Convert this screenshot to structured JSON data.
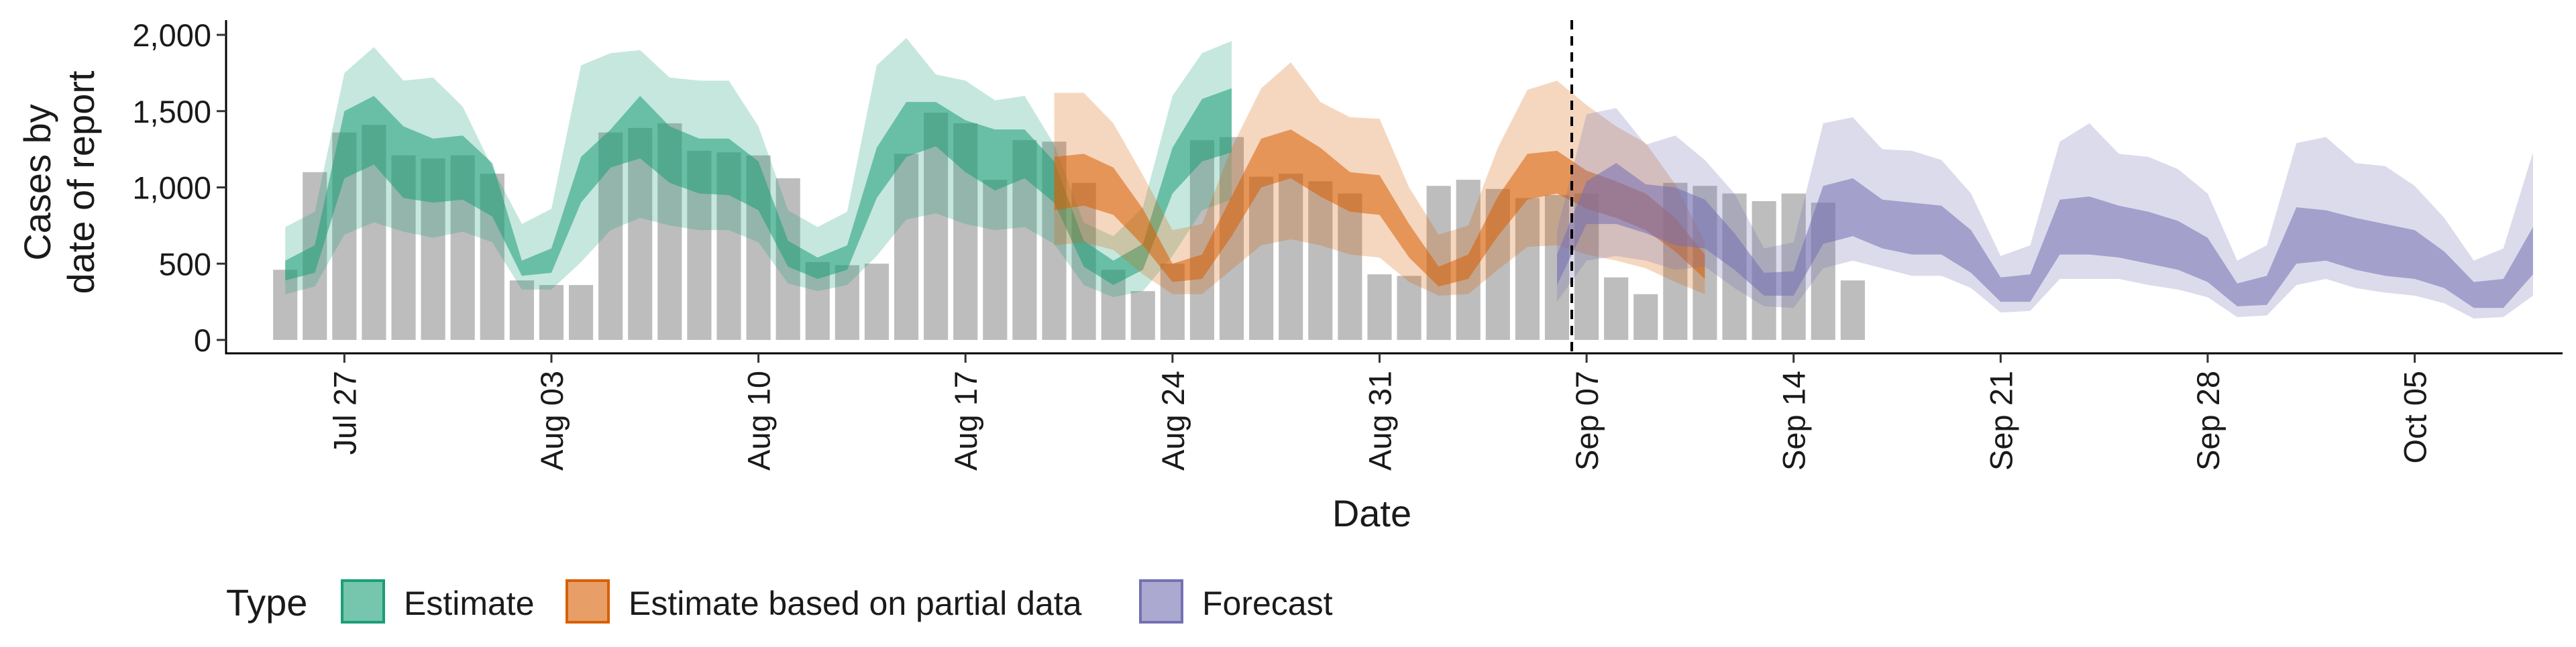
{
  "chart_data": {
    "type": "area",
    "title": "",
    "xlabel": "Date",
    "ylabel_lines": [
      "Cases by",
      "date of report"
    ],
    "ylim": [
      0,
      2000
    ],
    "yticks": [
      0,
      500,
      1000,
      1500,
      2000
    ],
    "ytick_labels": [
      "0",
      "500",
      "1,000",
      "1,500",
      "2,000"
    ],
    "xlim": [
      "2020-07-23",
      "2020-10-10"
    ],
    "xticks": [
      "2020-07-27",
      "2020-08-03",
      "2020-08-10",
      "2020-08-17",
      "2020-08-24",
      "2020-08-31",
      "2020-09-07",
      "2020-09-14",
      "2020-09-21",
      "2020-09-28",
      "2020-10-05"
    ],
    "xtick_labels": [
      "Jul 27",
      "Aug 03",
      "Aug 10",
      "Aug 17",
      "Aug 24",
      "Aug 31",
      "Sep 07",
      "Sep 14",
      "Sep 21",
      "Sep 28",
      "Oct 05"
    ],
    "grid": false,
    "legend": {
      "title": "Type",
      "position": "bottom",
      "entries": [
        {
          "label": "Estimate",
          "color": "#1b9e77"
        },
        {
          "label": "Estimate based on partial data",
          "color": "#d95f02"
        },
        {
          "label": "Forecast",
          "color": "#7570b3"
        }
      ]
    },
    "vline": {
      "date": "2020-09-06",
      "style": "dashed"
    },
    "reported_cases": {
      "start_date": "2020-07-25",
      "values": [
        460,
        1100,
        1360,
        1410,
        1210,
        1190,
        1210,
        1090,
        390,
        360,
        360,
        1360,
        1390,
        1420,
        1240,
        1230,
        1210,
        1060,
        510,
        490,
        500,
        1220,
        1490,
        1420,
        1050,
        1310,
        1300,
        1030,
        460,
        320,
        500,
        1310,
        1330,
        1070,
        1090,
        1040,
        960,
        430,
        420,
        1010,
        1050,
        990,
        930,
        950,
        960,
        410,
        300,
        1030,
        1010,
        960,
        910,
        960,
        900,
        390
      ]
    },
    "series": [
      {
        "name": "Estimate",
        "color": "#1b9e77",
        "start_date": "2020-07-25",
        "median": [
          450,
          560,
          1360,
          1480,
          1280,
          1200,
          1230,
          1090,
          460,
          560,
          940,
          1320,
          1560,
          1330,
          1220,
          1210,
          1050,
          580,
          470,
          590,
          960,
          1440,
          1530,
          1300,
          1220,
          1330,
          1070,
          560,
          400,
          590,
          1000,
          1250,
          1390
        ],
        "lower90": [
          300,
          350,
          690,
          770,
          710,
          670,
          710,
          640,
          330,
          330,
          510,
          720,
          800,
          750,
          720,
          720,
          640,
          370,
          320,
          360,
          550,
          790,
          830,
          760,
          720,
          740,
          630,
          360,
          280,
          320,
          550,
          850,
          920
        ],
        "upper90": [
          740,
          840,
          1750,
          1920,
          1700,
          1720,
          1530,
          1130,
          760,
          860,
          1800,
          1880,
          1900,
          1720,
          1700,
          1700,
          1400,
          850,
          740,
          840,
          1800,
          1980,
          1740,
          1700,
          1570,
          1600,
          1280,
          770,
          680,
          870,
          1600,
          1880,
          1960
        ],
        "lower50": [
          390,
          440,
          1060,
          1150,
          930,
          900,
          920,
          810,
          420,
          440,
          900,
          1130,
          1190,
          1030,
          960,
          950,
          850,
          480,
          400,
          460,
          930,
          1200,
          1270,
          1100,
          980,
          1060,
          900,
          480,
          360,
          460,
          960,
          1170,
          1230
        ],
        "upper50": [
          520,
          620,
          1500,
          1600,
          1400,
          1320,
          1340,
          1160,
          520,
          600,
          1200,
          1380,
          1600,
          1400,
          1320,
          1320,
          1170,
          650,
          540,
          620,
          1260,
          1560,
          1560,
          1440,
          1380,
          1380,
          1170,
          650,
          520,
          630,
          1260,
          1580,
          1650
        ]
      },
      {
        "name": "Estimate based on partial data",
        "color": "#d95f02",
        "start_date": "2020-08-20",
        "median": [
          1000,
          1030,
          950,
          700,
          400,
          490,
          780,
          1180,
          1220,
          1080,
          940,
          920,
          620,
          410,
          480,
          800,
          1050,
          1050,
          940,
          870,
          780,
          620,
          440
        ],
        "lower90": [
          620,
          640,
          590,
          430,
          300,
          300,
          460,
          620,
          660,
          620,
          560,
          540,
          380,
          290,
          300,
          460,
          610,
          620,
          560,
          520,
          470,
          380,
          300
        ],
        "upper90": [
          1620,
          1620,
          1420,
          1080,
          720,
          760,
          1260,
          1650,
          1820,
          1560,
          1460,
          1450,
          1000,
          690,
          750,
          1260,
          1640,
          1700,
          1540,
          1400,
          1290,
          1020,
          640
        ],
        "lower50": [
          850,
          880,
          820,
          620,
          380,
          400,
          680,
          1000,
          1060,
          940,
          840,
          820,
          540,
          350,
          400,
          680,
          920,
          960,
          860,
          800,
          720,
          580,
          400
        ],
        "upper50": [
          1200,
          1220,
          1130,
          860,
          500,
          560,
          940,
          1320,
          1380,
          1260,
          1100,
          1080,
          760,
          480,
          560,
          940,
          1220,
          1240,
          1110,
          1040,
          960,
          800,
          560
        ]
      },
      {
        "name": "Forecast",
        "color": "#7570b3",
        "start_date": "2020-09-06",
        "median": [
          450,
          860,
          960,
          880,
          850,
          780,
          560,
          380,
          390,
          760,
          860,
          760,
          730,
          700,
          580,
          340,
          340,
          700,
          760,
          700,
          660,
          620,
          530,
          310,
          320,
          650,
          700,
          650,
          600,
          560,
          470,
          300,
          300,
          580
        ],
        "lower90": [
          250,
          520,
          550,
          520,
          460,
          480,
          340,
          220,
          210,
          470,
          520,
          470,
          420,
          420,
          340,
          180,
          190,
          400,
          400,
          400,
          360,
          330,
          280,
          150,
          160,
          360,
          400,
          340,
          310,
          290,
          240,
          140,
          150,
          290
        ],
        "upper90": [
          720,
          1480,
          1520,
          1280,
          1340,
          1180,
          960,
          600,
          640,
          1420,
          1460,
          1250,
          1240,
          1180,
          960,
          550,
          620,
          1300,
          1420,
          1220,
          1200,
          1120,
          960,
          520,
          620,
          1290,
          1330,
          1160,
          1140,
          1010,
          800,
          520,
          600,
          1230
        ],
        "lower50": [
          360,
          760,
          760,
          700,
          620,
          600,
          460,
          290,
          290,
          630,
          680,
          600,
          560,
          560,
          440,
          250,
          250,
          560,
          560,
          540,
          500,
          460,
          380,
          220,
          230,
          500,
          520,
          460,
          420,
          400,
          340,
          210,
          210,
          430
        ],
        "upper50": [
          560,
          1040,
          1160,
          1020,
          1000,
          920,
          700,
          440,
          450,
          1010,
          1060,
          920,
          900,
          880,
          720,
          410,
          430,
          920,
          940,
          880,
          840,
          780,
          670,
          370,
          420,
          870,
          850,
          800,
          760,
          720,
          580,
          380,
          400,
          740
        ]
      }
    ]
  }
}
